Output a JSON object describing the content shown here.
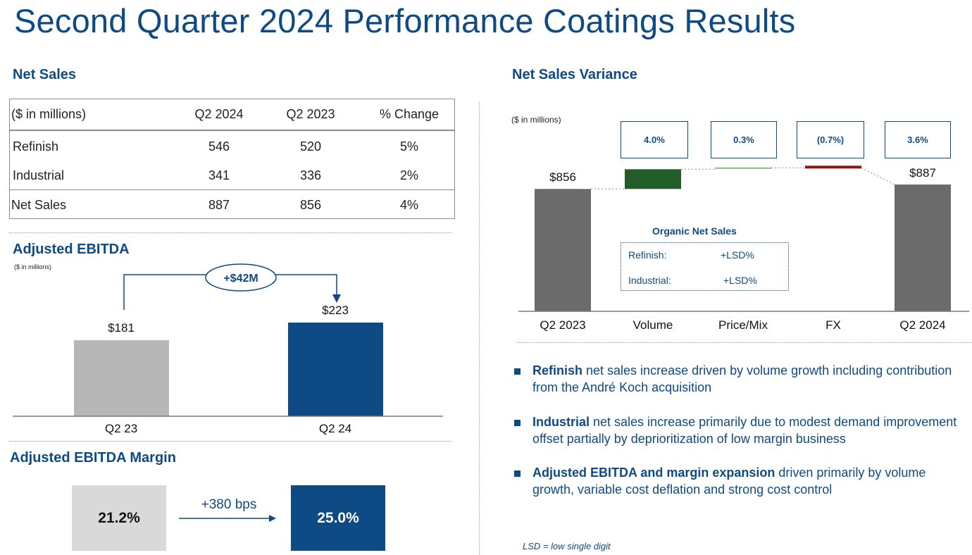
{
  "title": "Second Quarter 2024 Performance Coatings Results",
  "net_sales": {
    "heading": "Net Sales",
    "columns": [
      "($ in millions)",
      "Q2 2024",
      "Q2 2023",
      "% Change"
    ],
    "rows": [
      [
        "Refinish",
        "546",
        "520",
        "5%"
      ],
      [
        "Industrial",
        "341",
        "336",
        "2%"
      ],
      [
        "Net Sales",
        "887",
        "856",
        "4%"
      ]
    ]
  },
  "ebitda": {
    "heading": "Adjusted EBITDA",
    "units": "($ in millions)",
    "change_label": "+$42M",
    "bars": [
      {
        "label": "Q2 23",
        "value_label": "$181",
        "value": 181,
        "color": "#b7b7b7"
      },
      {
        "label": "Q2 24",
        "value_label": "$223",
        "value": 223,
        "color": "#0e4a84"
      }
    ]
  },
  "ebitda_margin": {
    "heading": "Adjusted EBITDA Margin",
    "from": "21.2%",
    "change": "+380 bps",
    "to": "25.0%"
  },
  "variance": {
    "heading": "Net Sales Variance",
    "units": "($ in millions)",
    "organic": {
      "title": "Organic Net Sales",
      "rows": [
        [
          "Refinish:",
          "+LSD%"
        ],
        [
          "Industrial:",
          "+LSD%"
        ]
      ]
    }
  },
  "chart_data": [
    {
      "type": "bar",
      "title": "Adjusted EBITDA",
      "categories": [
        "Q2 23",
        "Q2 24"
      ],
      "values": [
        181,
        223
      ],
      "ylabel": "($ in millions)",
      "annotations": [
        "+$42M"
      ]
    },
    {
      "type": "bar",
      "title": "Net Sales Variance",
      "subtype": "waterfall",
      "categories": [
        "Q2 2023",
        "Volume",
        "Price/Mix",
        "FX",
        "Q2 2024"
      ],
      "start": 856,
      "end": 887,
      "changes_pct": [
        "4.0%",
        "0.3%",
        "(0.7%)",
        "3.6%"
      ],
      "delta_values": [
        34,
        3,
        -6
      ],
      "value_labels": [
        "$856",
        "",
        "",
        "",
        "$887"
      ],
      "colors": {
        "total": "#6b6b6b",
        "up": "#225c28",
        "price": "#2e6b34",
        "down": "#8b1a14"
      },
      "ylabel": "($ in millions)"
    }
  ],
  "bullets": [
    {
      "bold": "Refinish",
      "text": " net sales increase driven by volume growth including contribution from the André Koch acquisition"
    },
    {
      "bold": "Industrial",
      "text": " net sales increase primarily due to modest demand improvement offset partially by deprioritization of low margin business"
    },
    {
      "bold": "Adjusted EBITDA and margin expansion",
      "text": " driven primarily by volume growth, variable cost deflation and strong cost control"
    }
  ],
  "footnote": "LSD = low single digit"
}
